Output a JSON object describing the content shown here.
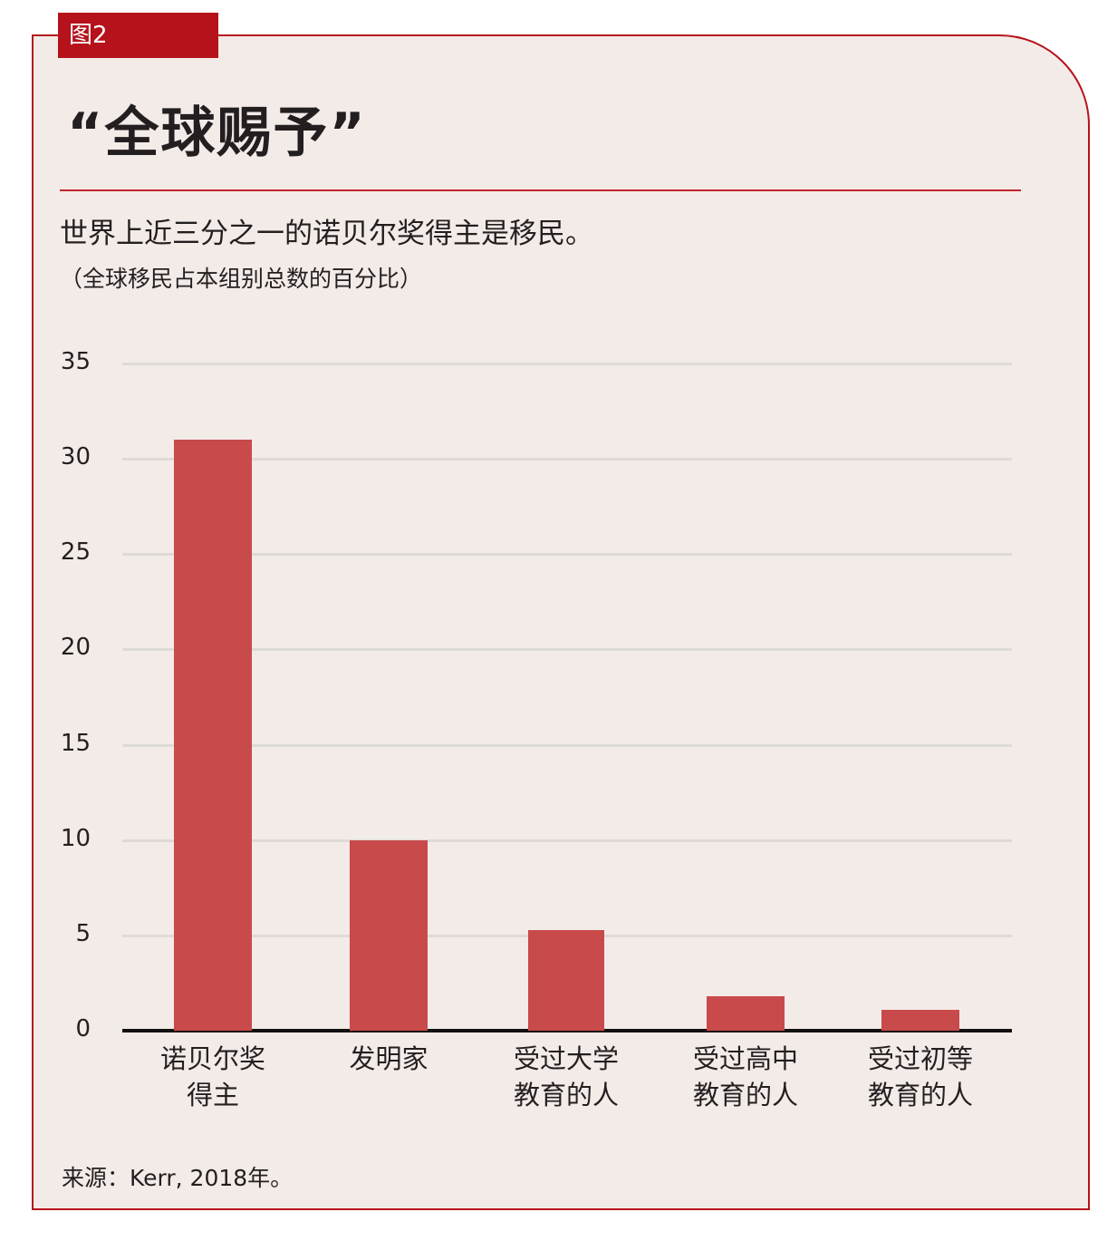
{
  "figure": {
    "tag": "图2",
    "title": "“全球赐予”",
    "subtitle": "世界上近三分之一的诺贝尔奖得主是移民。",
    "note": "（全球移民占本组别总数的百分比）",
    "source": "来源：Kerr, 2018年。"
  },
  "colors": {
    "accent": "#b5121b",
    "bar": "#c84a4b",
    "background": "#f3ebe8",
    "gridline": "#dddad8"
  },
  "chart_data": {
    "type": "bar",
    "title": "“全球赐予”",
    "subtitle": "世界上近三分之一的诺贝尔奖得主是移民。",
    "xlabel": "",
    "ylabel": "全球移民占本组别总数的百分比",
    "categories": [
      "诺贝尔奖得主",
      "发明家",
      "受过大学教育的人",
      "受过高中教育的人",
      "受过初等教育的人"
    ],
    "category_lines": [
      [
        "诺贝尔奖",
        "得主"
      ],
      [
        "发明家"
      ],
      [
        "受过大学",
        "教育的人"
      ],
      [
        "受过高中",
        "教育的人"
      ],
      [
        "受过初等",
        "教育的人"
      ]
    ],
    "values": [
      31,
      10,
      5.3,
      1.8,
      1.1
    ],
    "ylim": [
      0,
      35
    ],
    "yticks": [
      0,
      5,
      10,
      15,
      20,
      25,
      30,
      35
    ],
    "grid": true,
    "legend": null,
    "source": "Kerr, 2018年"
  }
}
